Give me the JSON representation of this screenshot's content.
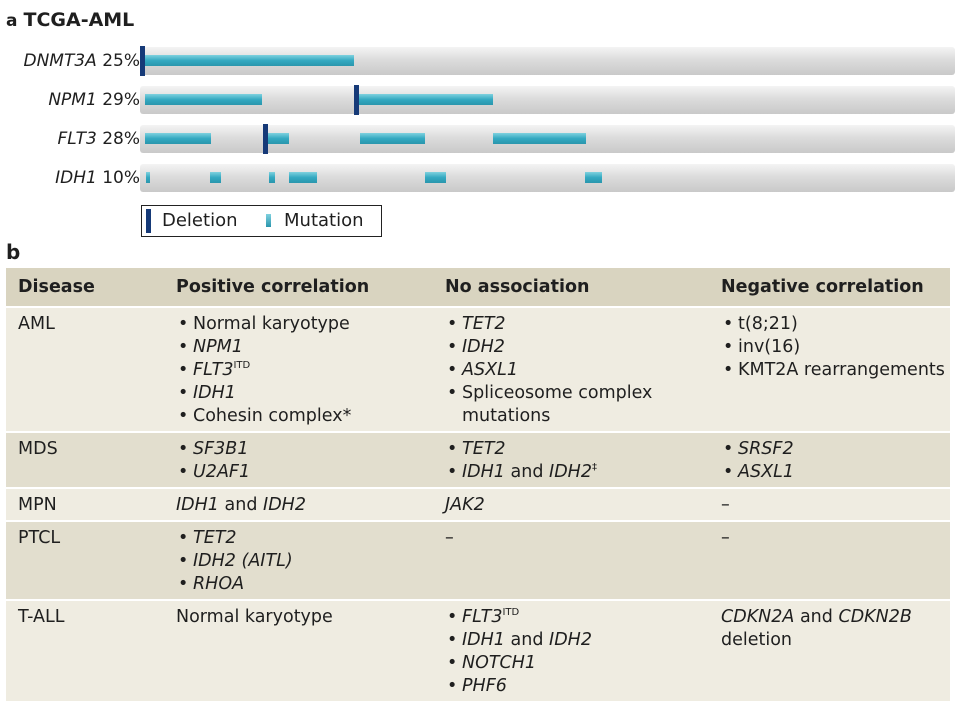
{
  "panel_a": {
    "letter": "a",
    "title": "TCGA-AML",
    "genes": [
      {
        "name": "DNMT3A",
        "pct": "25%"
      },
      {
        "name": "NPM1",
        "pct": "29%"
      },
      {
        "name": "FLT3",
        "pct": "28%"
      },
      {
        "name": "IDH1",
        "pct": "10%"
      }
    ],
    "legend": {
      "deletion": "Deletion",
      "mutation": "Mutation"
    },
    "colors": {
      "deletion": "#163a78",
      "mutation": "#34a9c1",
      "track": "#d6d6d6"
    }
  },
  "panel_b": {
    "letter": "b",
    "headers": [
      "Disease",
      "Positive correlation",
      "No association",
      "Negative correlation"
    ],
    "rows": [
      {
        "disease": "AML",
        "positive": [
          "Normal karyotype",
          "NPM1",
          "FLT3",
          "IDH1",
          "Cohesin complex*"
        ],
        "flt3_sup": "ITD",
        "none": [
          "TET2",
          "IDH2",
          "ASXL1",
          "Spliceosome complex mutations"
        ],
        "negative": [
          "t(8;21)",
          "inv(16)",
          "KMT2A rearrangements"
        ]
      },
      {
        "disease": "MDS",
        "positive": [
          "SF3B1",
          "U2AF1"
        ],
        "none": [
          "TET2",
          "IDH1",
          "and",
          "IDH2",
          "‡"
        ],
        "negative": [
          "SRSF2",
          "ASXL1"
        ]
      },
      {
        "disease": "MPN",
        "positive": [
          "IDH1",
          "and",
          "IDH2"
        ],
        "none": [
          "JAK2"
        ],
        "negative": [
          "–"
        ]
      },
      {
        "disease": "PTCL",
        "positive": [
          "TET2",
          "IDH2 (AITL)",
          "RHOA"
        ],
        "none": [
          "–"
        ],
        "negative": [
          "–"
        ]
      },
      {
        "disease": "T-ALL",
        "positive": [
          "Normal karyotype"
        ],
        "none": [
          "FLT3",
          "ITD",
          "IDH1",
          "and",
          "IDH2",
          "NOTCH1",
          "PHF6"
        ],
        "negative": [
          "CDKN2A",
          "and",
          "CDKN2B",
          "deletion"
        ]
      }
    ]
  }
}
